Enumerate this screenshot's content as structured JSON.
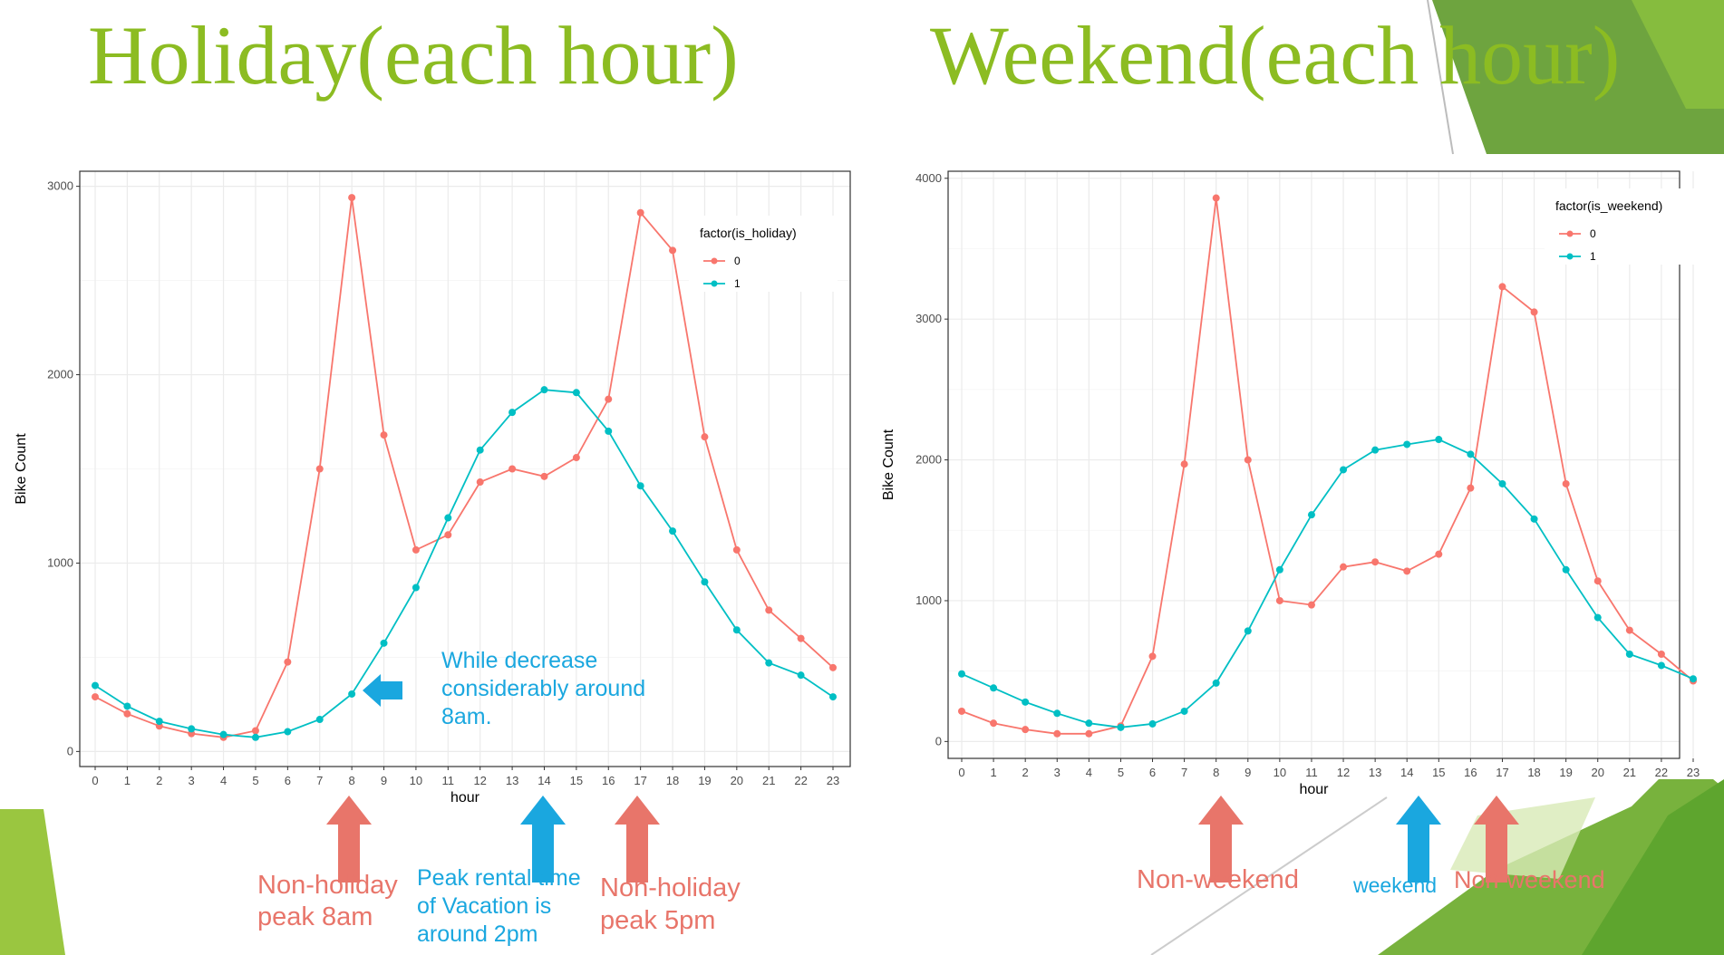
{
  "slide": {
    "accent": "#8cbc22",
    "left_title": "Holiday(each hour)",
    "right_title": "Weekend(each hour)"
  },
  "chart_data": [
    {
      "type": "line",
      "xlabel": "hour",
      "ylabel": "Bike Count",
      "x": [
        0,
        1,
        2,
        3,
        4,
        5,
        6,
        7,
        8,
        9,
        10,
        11,
        12,
        13,
        14,
        15,
        16,
        17,
        18,
        19,
        20,
        21,
        22,
        23
      ],
      "ylim": [
        -80,
        3080
      ],
      "yticks": [
        0,
        1000,
        2000,
        3000
      ],
      "grid": true,
      "legend_title": "factor(is_holiday)",
      "legend_position": "top-right",
      "series": [
        {
          "name": "0",
          "color": "#f8766d",
          "values": [
            290,
            200,
            135,
            95,
            75,
            110,
            475,
            1500,
            2940,
            1680,
            1070,
            1150,
            1430,
            1500,
            1460,
            1560,
            1870,
            2860,
            2660,
            1670,
            1070,
            750,
            600,
            445
          ]
        },
        {
          "name": "1",
          "color": "#00bfc4",
          "values": [
            350,
            240,
            160,
            120,
            90,
            75,
            105,
            170,
            305,
            575,
            870,
            1240,
            1600,
            1800,
            1920,
            1905,
            1700,
            1410,
            1170,
            900,
            645,
            470,
            405,
            290
          ]
        }
      ]
    },
    {
      "type": "line",
      "xlabel": "hour",
      "ylabel": "Bike Count",
      "x": [
        0,
        1,
        2,
        3,
        4,
        5,
        6,
        7,
        8,
        9,
        10,
        11,
        12,
        13,
        14,
        15,
        16,
        17,
        18,
        19,
        20,
        21,
        22,
        23
      ],
      "ylim": [
        -120,
        4050
      ],
      "yticks": [
        0,
        1000,
        2000,
        3000,
        4000
      ],
      "grid": true,
      "legend_title": "factor(is_weekend)",
      "legend_position": "top-right",
      "series": [
        {
          "name": "0",
          "color": "#f8766d",
          "values": [
            215,
            130,
            85,
            55,
            55,
            110,
            605,
            1970,
            3860,
            2000,
            1000,
            970,
            1240,
            1275,
            1210,
            1330,
            1800,
            3230,
            3050,
            1830,
            1140,
            790,
            620,
            430
          ]
        },
        {
          "name": "1",
          "color": "#00bfc4",
          "values": [
            480,
            380,
            280,
            200,
            130,
            100,
            125,
            215,
            415,
            785,
            1220,
            1610,
            1930,
            2070,
            2110,
            2145,
            2040,
            1830,
            1580,
            1220,
            880,
            620,
            540,
            445
          ]
        }
      ]
    }
  ],
  "annotations": {
    "left_decrease": "While decrease\nconsiderably around\n8am.",
    "left_peak_8am": "Non-holiday\npeak  8am",
    "left_peak_vacation": "Peak rental time\nof Vacation is\naround 2pm",
    "left_peak_5pm": "Non-holiday\npeak  5pm",
    "right_nonweekend_1": "Non-weekend",
    "right_weekend": "weekend",
    "right_nonweekend_2": "Non-weekend",
    "salmon_color": "#e8756a",
    "cyan_color": "#1aa7df"
  }
}
